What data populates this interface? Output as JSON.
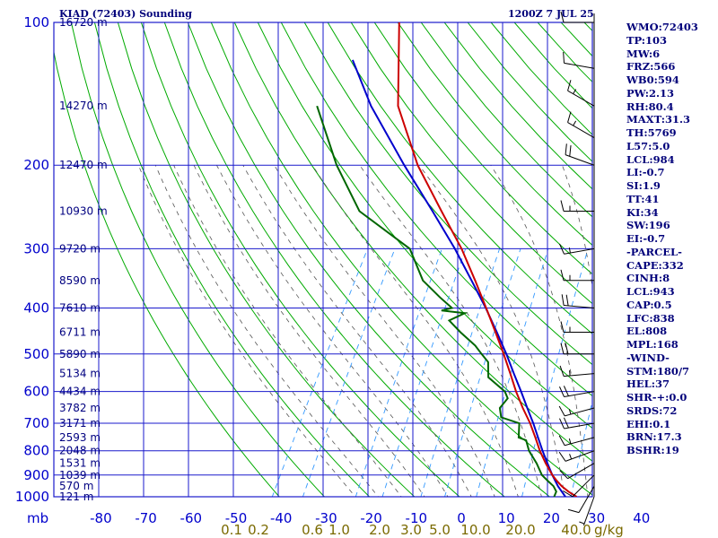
{
  "header": {
    "title": "KIAD (72403) Sounding",
    "time": "1200Z  7 JUL 25"
  },
  "indices": [
    "WMO:72403",
    "TP:103",
    "MW:6",
    "FRZ:566",
    "WB0:594",
    "PW:2.13",
    "RH:80.4",
    "MAXT:31.3",
    "TH:5769",
    "L57:5.0",
    "LCL:984",
    "LI:-0.7",
    "SI:1.9",
    "TT:41",
    "KI:34",
    "SW:196",
    "EI:-0.7",
    "-PARCEL-",
    "CAPE:332",
    "CINH:8",
    "LCL:943",
    "CAP:0.5",
    "LFC:838",
    "EL:808",
    "MPL:168",
    "-WIND-",
    "STM:180/7",
    "HEL:37",
    "SHR-+:0.0",
    "SRDS:72",
    "EHI:0.1",
    "BRN:17.3",
    "BSHR:19"
  ],
  "colors": {
    "axis_blue": "#0000aa",
    "grid": "#1a1acc",
    "dry_adiabat": "#00aa00",
    "moist_adiabat": "#555555",
    "mixing_ratio": "#3399ff",
    "temperature": "#cc0000",
    "dewpoint": "#006600",
    "parcel": "#0000cc",
    "wind_barb": "#000000",
    "mixing_label": "#7a6a00"
  },
  "chart_data": {
    "type": "skew-t",
    "pressure_axis": {
      "ticks": [
        100,
        200,
        300,
        400,
        500,
        600,
        700,
        800,
        900,
        1000
      ],
      "unit_label": "mb"
    },
    "temperature_axis": {
      "ticks": [
        -80,
        -70,
        -60,
        -50,
        -40,
        -30,
        -20,
        -10,
        0,
        10,
        20,
        30,
        40
      ],
      "labels": [
        "-80",
        "-70",
        "-60",
        "-50",
        "-40",
        "-30",
        "-20",
        "-10",
        "0",
        "10",
        "20",
        "30",
        "40"
      ]
    },
    "height_labels": [
      {
        "p": 100,
        "label": "16720 m"
      },
      {
        "p": 150,
        "label": "14270 m"
      },
      {
        "p": 200,
        "label": "12470 m"
      },
      {
        "p": 250,
        "label": "10930 m"
      },
      {
        "p": 300,
        "label": "9720 m"
      },
      {
        "p": 350,
        "label": "8590 m"
      },
      {
        "p": 400,
        "label": "7610 m"
      },
      {
        "p": 450,
        "label": "6711 m"
      },
      {
        "p": 500,
        "label": "5890 m"
      },
      {
        "p": 550,
        "label": "5134 m"
      },
      {
        "p": 600,
        "label": "4434 m"
      },
      {
        "p": 650,
        "label": "3782 m"
      },
      {
        "p": 700,
        "label": "3171 m"
      },
      {
        "p": 750,
        "label": "2593 m"
      },
      {
        "p": 800,
        "label": "2048 m"
      },
      {
        "p": 850,
        "label": "1531 m"
      },
      {
        "p": 900,
        "label": "1039 m"
      },
      {
        "p": 950,
        "label": "570 m"
      },
      {
        "p": 1000,
        "label": "121 m"
      }
    ],
    "mixing_ratio_labels": [
      "0.1",
      "0.2",
      "0.6",
      "1.0",
      "2.0",
      "3.0",
      "5.0",
      "10.0",
      "20.0",
      "40.0"
    ],
    "mixing_ratio_unit": "g/kg",
    "mixing_ratios": [
      0.1,
      0.2,
      0.6,
      1.0,
      2.0,
      3.0,
      5.0,
      10.0,
      20.0,
      40.0
    ],
    "temperature_profile": [
      {
        "p": 1000,
        "t": 26.0
      },
      {
        "p": 975,
        "t": 23.5
      },
      {
        "p": 950,
        "t": 21.3
      },
      {
        "p": 925,
        "t": 19.5
      },
      {
        "p": 900,
        "t": 17.8
      },
      {
        "p": 850,
        "t": 14.8
      },
      {
        "p": 800,
        "t": 11.9
      },
      {
        "p": 750,
        "t": 9.2
      },
      {
        "p": 700,
        "t": 6.2
      },
      {
        "p": 650,
        "t": 2.6
      },
      {
        "p": 600,
        "t": -1.0
      },
      {
        "p": 550,
        "t": -4.6
      },
      {
        "p": 500,
        "t": -8.6
      },
      {
        "p": 450,
        "t": -13.2
      },
      {
        "p": 400,
        "t": -18.4
      },
      {
        "p": 350,
        "t": -24.4
      },
      {
        "p": 300,
        "t": -31.5
      },
      {
        "p": 250,
        "t": -40.8
      },
      {
        "p": 200,
        "t": -52.0
      },
      {
        "p": 150,
        "t": -64.0
      },
      {
        "p": 100,
        "t": -74.5
      }
    ],
    "dewpoint_profile": [
      {
        "p": 1000,
        "t": 21.0
      },
      {
        "p": 975,
        "t": 20.8
      },
      {
        "p": 950,
        "t": 19.5
      },
      {
        "p": 925,
        "t": 17.5
      },
      {
        "p": 900,
        "t": 15.5
      },
      {
        "p": 850,
        "t": 12.8
      },
      {
        "p": 800,
        "t": 9.5
      },
      {
        "p": 760,
        "t": 7.5
      },
      {
        "p": 750,
        "t": 5.5
      },
      {
        "p": 700,
        "t": 3.8
      },
      {
        "p": 680,
        "t": -1.0
      },
      {
        "p": 650,
        "t": -2.5
      },
      {
        "p": 620,
        "t": -2.0
      },
      {
        "p": 600,
        "t": -3.5
      },
      {
        "p": 560,
        "t": -9.0
      },
      {
        "p": 520,
        "t": -11.0
      },
      {
        "p": 500,
        "t": -13.5
      },
      {
        "p": 480,
        "t": -16.0
      },
      {
        "p": 450,
        "t": -21.0
      },
      {
        "p": 425,
        "t": -25.0
      },
      {
        "p": 410,
        "t": -22.5
      },
      {
        "p": 405,
        "t": -28.0
      },
      {
        "p": 400,
        "t": -26.0
      },
      {
        "p": 380,
        "t": -30.0
      },
      {
        "p": 350,
        "t": -36.0
      },
      {
        "p": 300,
        "t": -43.0
      },
      {
        "p": 250,
        "t": -59.0
      },
      {
        "p": 200,
        "t": -70.0
      },
      {
        "p": 150,
        "t": -82.0
      }
    ],
    "parcel_profile": [
      {
        "p": 1000,
        "t": 23.5
      },
      {
        "p": 950,
        "t": 20.5
      },
      {
        "p": 900,
        "t": 17.8
      },
      {
        "p": 850,
        "t": 15.2
      },
      {
        "p": 800,
        "t": 12.5
      },
      {
        "p": 750,
        "t": 9.8
      },
      {
        "p": 700,
        "t": 6.9
      },
      {
        "p": 650,
        "t": 3.6
      },
      {
        "p": 600,
        "t": 0.1
      },
      {
        "p": 550,
        "t": -3.8
      },
      {
        "p": 500,
        "t": -8.0
      },
      {
        "p": 450,
        "t": -12.9
      },
      {
        "p": 400,
        "t": -18.5
      },
      {
        "p": 350,
        "t": -25.2
      },
      {
        "p": 300,
        "t": -33.0
      },
      {
        "p": 250,
        "t": -42.8
      },
      {
        "p": 200,
        "t": -55.0
      },
      {
        "p": 150,
        "t": -70.0
      },
      {
        "p": 120,
        "t": -80.0
      }
    ],
    "winds": [
      {
        "p": 1000,
        "dir": 200,
        "spd": 5
      },
      {
        "p": 950,
        "dir": 210,
        "spd": 10
      },
      {
        "p": 900,
        "dir": 225,
        "spd": 10
      },
      {
        "p": 850,
        "dir": 240,
        "spd": 10
      },
      {
        "p": 800,
        "dir": 250,
        "spd": 15
      },
      {
        "p": 750,
        "dir": 255,
        "spd": 15
      },
      {
        "p": 700,
        "dir": 260,
        "spd": 20
      },
      {
        "p": 650,
        "dir": 255,
        "spd": 15
      },
      {
        "p": 600,
        "dir": 260,
        "spd": 20
      },
      {
        "p": 550,
        "dir": 265,
        "spd": 15
      },
      {
        "p": 500,
        "dir": 270,
        "spd": 20
      },
      {
        "p": 450,
        "dir": 270,
        "spd": 15
      },
      {
        "p": 400,
        "dir": 275,
        "spd": 20
      },
      {
        "p": 350,
        "dir": 270,
        "spd": 15
      },
      {
        "p": 300,
        "dir": 260,
        "spd": 15
      },
      {
        "p": 250,
        "dir": 270,
        "spd": 15
      },
      {
        "p": 200,
        "dir": 290,
        "spd": 20
      },
      {
        "p": 175,
        "dir": 300,
        "spd": 15
      },
      {
        "p": 150,
        "dir": 300,
        "spd": 15
      },
      {
        "p": 125,
        "dir": 280,
        "spd": 10
      },
      {
        "p": 100,
        "dir": 270,
        "spd": 10
      }
    ]
  }
}
